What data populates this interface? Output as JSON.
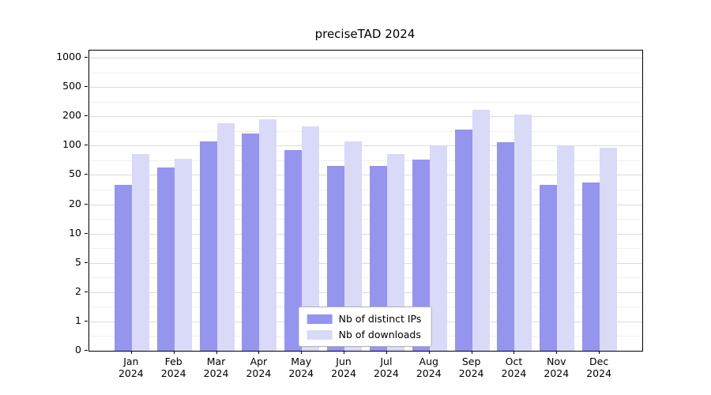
{
  "chart_data": {
    "type": "bar",
    "title": "preciseTAD 2024",
    "categories": [
      "Jan",
      "Feb",
      "Mar",
      "Apr",
      "May",
      "Jun",
      "Jul",
      "Aug",
      "Sep",
      "Oct",
      "Nov",
      "Dec"
    ],
    "year_label": "2024",
    "series": [
      {
        "name": "Nb of distinct IPs",
        "color": "#9595ee",
        "values": [
          40,
          62,
          115,
          140,
          92,
          66,
          65,
          76,
          155,
          112,
          40,
          42
        ]
      },
      {
        "name": "Nb of downloads",
        "color": "#d9d9f8",
        "values": [
          85,
          78,
          175,
          190,
          165,
          115,
          85,
          102,
          270,
          215,
          100,
          96
        ]
      }
    ],
    "y_ticks": [
      0,
      1,
      2,
      5,
      10,
      20,
      50,
      100,
      200,
      500,
      1000
    ],
    "scale": "log-like-even-ticks",
    "grid": "horizontal",
    "legend_position": "lower center",
    "axis_color": "#000000",
    "grid_color": "#dcdcdc"
  }
}
